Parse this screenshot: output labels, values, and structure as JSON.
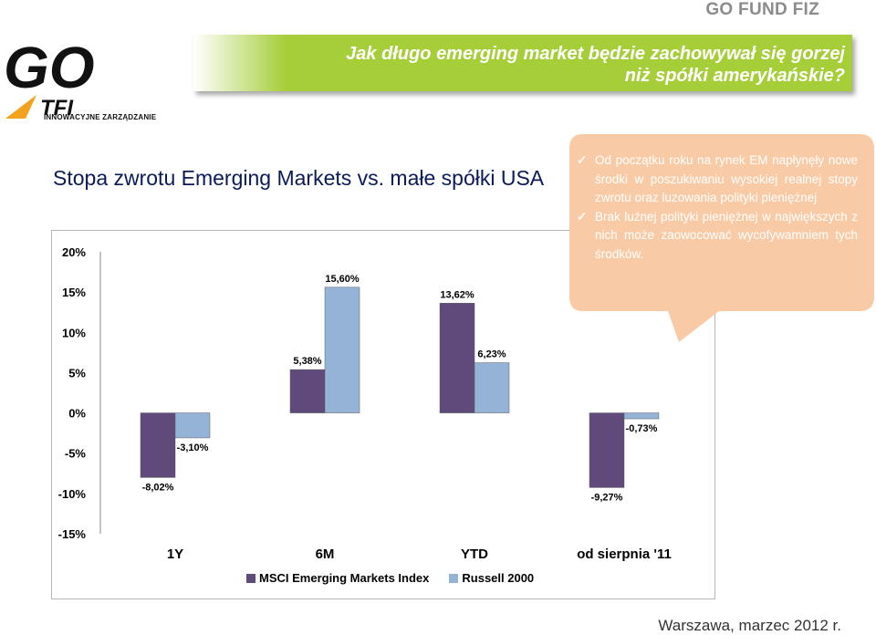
{
  "header": {
    "brand": "GO FUND FIZ",
    "banner_line1": "Jak długo emerging market będzie zachowywał się gorzej",
    "banner_line2": "niż spółki amerykańskie?"
  },
  "logo": {
    "main": "GO",
    "sub": "TFI",
    "tagline": "INNOWACYJNE ZARZĄDZANIE"
  },
  "chart_data": {
    "type": "bar",
    "title": "Stopa zwrotu Emerging Markets vs. małe spółki USA",
    "categories": [
      "1Y",
      "6M",
      "YTD",
      "od sierpnia '11"
    ],
    "series": [
      {
        "name": "MSCI Emerging Markets Index",
        "values": [
          -8.02,
          5.38,
          13.62,
          -9.27
        ],
        "labels": [
          "-8,02%",
          "5,38%",
          "13,62%",
          "-9,27%"
        ],
        "color": "#604a7b"
      },
      {
        "name": "Russell 2000",
        "values": [
          -3.1,
          15.6,
          6.23,
          -0.73
        ],
        "labels": [
          "-3,10%",
          "15,60%",
          "6,23%",
          "-0,73%"
        ],
        "color": "#95b3d7"
      }
    ],
    "ylim": [
      -15,
      20
    ],
    "yticks": [
      "20%",
      "15%",
      "10%",
      "5%",
      "0%",
      "-5%",
      "-10%",
      "-15%"
    ],
    "ytick_values": [
      20,
      15,
      10,
      5,
      0,
      -5,
      -10,
      -15
    ],
    "legend": "bottom",
    "grid": false
  },
  "callout": {
    "items": [
      "Od początku roku na rynek EM napłynęły nowe środki w poszukiwaniu wysokiej realnej stopy zwrotu oraz luzowania polityki pieniężnej",
      "Brak luźnej polityki pieniężnej w największych z nich może zaowocować wycofywamniem tych środków."
    ],
    "color": "#f9caa6"
  },
  "footer": "Warszawa, marzec 2012 r."
}
